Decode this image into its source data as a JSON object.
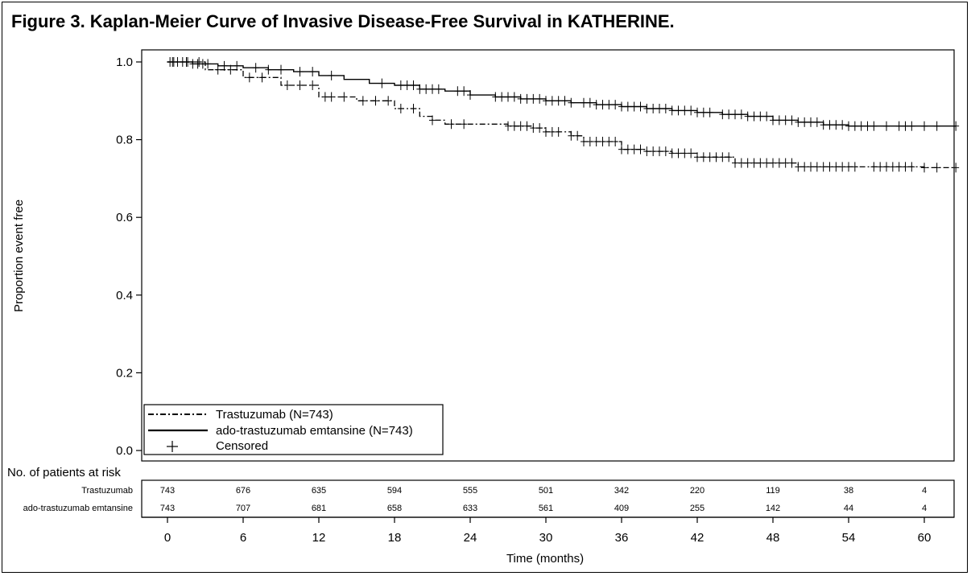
{
  "chart_data": {
    "type": "line",
    "title": "Figure 3. Kaplan-Meier Curve of Invasive Disease-Free Survival in KATHERINE.",
    "xlabel": "Time (months)",
    "ylabel": "Proportion event free",
    "xlim": [
      0,
      62.5
    ],
    "ylim": [
      0,
      1.05
    ],
    "xticks": [
      0,
      6,
      12,
      18,
      24,
      30,
      36,
      42,
      48,
      54,
      60
    ],
    "yticks": [
      "0.0",
      "0.2",
      "0.4",
      "0.6",
      "0.8",
      "1.0"
    ],
    "series": [
      {
        "name": "Trastuzumab (N=743)",
        "style": "dash-dot",
        "x": [
          0,
          3,
          6,
          9,
          12,
          15,
          18,
          20,
          21,
          22,
          24,
          27,
          29,
          30,
          32,
          33,
          36,
          38,
          40,
          42,
          45,
          48,
          50,
          54,
          60,
          62.5
        ],
        "y": [
          1.0,
          0.98,
          0.96,
          0.94,
          0.91,
          0.9,
          0.88,
          0.86,
          0.85,
          0.84,
          0.84,
          0.835,
          0.83,
          0.82,
          0.81,
          0.795,
          0.775,
          0.77,
          0.765,
          0.755,
          0.74,
          0.74,
          0.73,
          0.73,
          0.728,
          0.728
        ],
        "censored_x": [
          0.5,
          1.5,
          2.5,
          4,
          5,
          6.5,
          7.5,
          9.5,
          10.5,
          11.5,
          12.5,
          13,
          14,
          15.5,
          16.5,
          17.5,
          18.5,
          19.5,
          21,
          22.5,
          23.5,
          27,
          27.5,
          28,
          28.5,
          29,
          29.5,
          30,
          30.5,
          31,
          32,
          32.5,
          33,
          33.5,
          34,
          34.5,
          35,
          35.5,
          36,
          36.5,
          37,
          37.5,
          38,
          38.5,
          39,
          39.5,
          40,
          40.5,
          41,
          41.5,
          42,
          42.5,
          43,
          43.5,
          44,
          44.5,
          45,
          45.5,
          46,
          46.5,
          47,
          47.5,
          48,
          48.5,
          49,
          49.5,
          50,
          50.5,
          51,
          51.5,
          52,
          52.5,
          53,
          53.5,
          54,
          54.5,
          56,
          56.5,
          57,
          57.5,
          58,
          58.5,
          59,
          60,
          61,
          62.5
        ]
      },
      {
        "name": "ado-trastuzumab emtansine (N=743)",
        "style": "solid",
        "x": [
          0,
          2,
          4,
          6,
          8,
          10,
          12,
          14,
          16,
          18,
          20,
          22,
          24,
          26,
          28,
          30,
          32,
          34,
          36,
          38,
          40,
          42,
          44,
          46,
          48,
          50,
          52,
          54,
          60,
          62.5
        ],
        "y": [
          1.0,
          0.995,
          0.99,
          0.985,
          0.98,
          0.975,
          0.965,
          0.955,
          0.945,
          0.94,
          0.93,
          0.925,
          0.915,
          0.91,
          0.905,
          0.9,
          0.895,
          0.89,
          0.885,
          0.88,
          0.875,
          0.87,
          0.865,
          0.86,
          0.85,
          0.845,
          0.838,
          0.835,
          0.835,
          0.835
        ],
        "censored_x": [
          0.2,
          0.4,
          0.8,
          1.2,
          1.6,
          2,
          2.4,
          2.8,
          3.2,
          4.5,
          5.5,
          7,
          8,
          9,
          10.5,
          11.5,
          13,
          17,
          18.5,
          19,
          19.5,
          20,
          20.5,
          21,
          21.5,
          23,
          23.5,
          24,
          26,
          26.5,
          27,
          27.5,
          28,
          28.5,
          29,
          29.5,
          30,
          30.5,
          31,
          31.5,
          32,
          33,
          33.5,
          34,
          34.5,
          35,
          35.5,
          36,
          36.5,
          37,
          37.5,
          38,
          38.5,
          39,
          39.5,
          40,
          40.5,
          41,
          41.5,
          42,
          42.5,
          43,
          44,
          44.5,
          45,
          45.5,
          46,
          46.5,
          47,
          47.5,
          48,
          48.5,
          49,
          49.5,
          50,
          50.5,
          51,
          51.5,
          52,
          52.5,
          53,
          53.5,
          54,
          54.5,
          55,
          55.5,
          56,
          57,
          58,
          58.5,
          59,
          60,
          61,
          62.5
        ]
      }
    ],
    "legend": {
      "placement": "bottom-left",
      "entries": [
        {
          "label": "Trastuzumab (N=743)",
          "style": "dash-dot"
        },
        {
          "label": "ado-trastuzumab emtansine (N=743)",
          "style": "solid"
        },
        {
          "label": "Censored",
          "style": "censor-mark"
        }
      ]
    },
    "risk_table": {
      "title": "No. of patients at risk",
      "rows": [
        {
          "label": "Trastuzumab",
          "values": [
            "743",
            "676",
            "635",
            "594",
            "555",
            "501",
            "342",
            "220",
            "119",
            "38",
            "4"
          ]
        },
        {
          "label": "ado-trastuzumab emtansine",
          "values": [
            "743",
            "707",
            "681",
            "658",
            "633",
            "561",
            "409",
            "255",
            "142",
            "44",
            "4"
          ]
        }
      ]
    }
  }
}
